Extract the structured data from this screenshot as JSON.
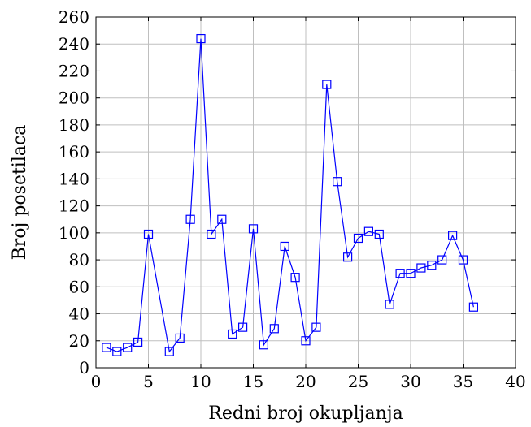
{
  "chart_data": {
    "type": "line",
    "title": "",
    "xlabel": "Redni broj okupljanja",
    "ylabel": "Broj posetilaca",
    "xlim": [
      0,
      40
    ],
    "ylim": [
      0,
      260
    ],
    "xticks": [
      0,
      5,
      10,
      15,
      20,
      25,
      30,
      35,
      40
    ],
    "yticks": [
      0,
      20,
      40,
      60,
      80,
      100,
      120,
      140,
      160,
      180,
      200,
      220,
      240,
      260
    ],
    "grid": true,
    "legend": "none",
    "series": [
      {
        "color": "#0000ff",
        "marker": "square",
        "x": [
          1,
          2,
          3,
          4,
          5,
          7,
          8,
          9,
          10,
          11,
          12,
          13,
          14,
          15,
          16,
          17,
          18,
          19,
          20,
          21,
          22,
          23,
          24,
          25,
          26,
          27,
          28,
          29,
          30,
          31,
          32,
          33,
          34,
          35,
          36
        ],
        "y": [
          15,
          12,
          15,
          19,
          99,
          12,
          22,
          110,
          244,
          99,
          110,
          25,
          30,
          103,
          17,
          29,
          90,
          67,
          20,
          30,
          210,
          138,
          82,
          96,
          101,
          99,
          47,
          70,
          70,
          74,
          76,
          80,
          98,
          80,
          45
        ]
      }
    ]
  }
}
